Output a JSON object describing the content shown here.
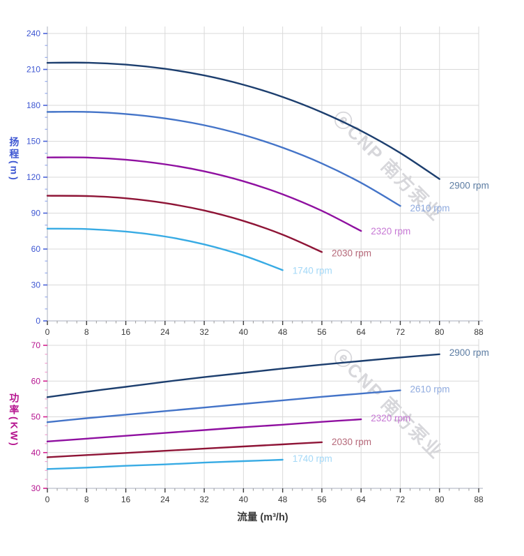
{
  "style": {
    "background": "#ffffff",
    "grid_color": "#d9d9d9",
    "axis_line_color": "#b9bdc9",
    "x_tick_color": "#3a3a3a",
    "x_minor_tick_color": "#9a9a9a",
    "x_label_color": "#3a3a3a",
    "watermark_color": "#d7d7db"
  },
  "watermark": {
    "text": "ⓔCNP 南方泵业"
  },
  "x_axis": {
    "min": 0,
    "max": 88,
    "major_step": 8,
    "minor_step": 2,
    "ticks": [
      0,
      8,
      16,
      24,
      32,
      40,
      48,
      56,
      64,
      72,
      80,
      88
    ]
  },
  "chart_data": [
    {
      "type": "line",
      "name": "head",
      "title": "",
      "xlabel": "",
      "ylabel": "扬程(m)",
      "ylim": [
        0,
        240
      ],
      "y_ticks": [
        0,
        30,
        60,
        90,
        120,
        150,
        180,
        210,
        240
      ],
      "y_minor_step": 10,
      "axis_color": "#3d56d2",
      "tick_color": "#4a63d8",
      "minor_tick_color": "#93a8ec",
      "grid": true,
      "legend": "labels at right end of each curve",
      "series": [
        {
          "name": "2900 rpm",
          "color": "#1c3e6e",
          "label_color": "#5d7da3",
          "x": [
            0,
            8,
            16,
            24,
            32,
            40,
            48,
            56,
            64,
            72,
            80
          ],
          "y": [
            215.5,
            215.6,
            214.0,
            210.5,
            205.0,
            197.2,
            187.0,
            174.2,
            158.7,
            140.2,
            118.5
          ],
          "label_at": [
            82,
            113
          ]
        },
        {
          "name": "2610 rpm",
          "color": "#4474c8",
          "label_color": "#90abdf",
          "x": [
            0,
            8,
            16,
            24,
            32,
            40,
            48,
            56,
            64,
            72
          ],
          "y": [
            174.5,
            174.5,
            172.8,
            169.1,
            163.4,
            155.3,
            144.7,
            131.5,
            115.3,
            96.0
          ],
          "label_at": [
            74,
            94
          ]
        },
        {
          "name": "2320 rpm",
          "color": "#8f10a0",
          "label_color": "#c678d4",
          "x": [
            0,
            8,
            16,
            24,
            32,
            40,
            48,
            56,
            64
          ],
          "y": [
            136.5,
            136.4,
            134.6,
            130.8,
            124.9,
            116.6,
            105.7,
            91.9,
            75.1
          ],
          "label_at": [
            66,
            75
          ]
        },
        {
          "name": "2030 rpm",
          "color": "#8e1436",
          "label_color": "#b56879",
          "x": [
            0,
            8,
            16,
            24,
            32,
            40,
            48,
            56
          ],
          "y": [
            104.5,
            104.3,
            102.4,
            98.4,
            92.2,
            83.5,
            72.0,
            57.5
          ],
          "label_at": [
            58,
            56.5
          ]
        },
        {
          "name": "1740 rpm",
          "color": "#38abe4",
          "label_color": "#a3d8f7",
          "x": [
            0,
            8,
            16,
            24,
            32,
            40,
            48
          ],
          "y": [
            77.0,
            76.7,
            74.6,
            70.5,
            63.9,
            54.6,
            42.4
          ],
          "label_at": [
            50,
            42
          ]
        }
      ]
    },
    {
      "type": "line",
      "name": "power",
      "title": "",
      "xlabel": "流量 (m³/h)",
      "ylabel": "功率(KW)",
      "ylim": [
        30,
        70
      ],
      "y_ticks": [
        30,
        40,
        50,
        60,
        70
      ],
      "y_minor_step": 2.5,
      "axis_color": "#b5138f",
      "tick_color": "#d4218f",
      "minor_tick_color": "#ef9ece",
      "grid": true,
      "legend": "labels at right end of each curve",
      "series": [
        {
          "name": "2900 rpm",
          "color": "#1c3e6e",
          "label_color": "#5d7da3",
          "x": [
            0,
            8,
            16,
            24,
            32,
            40,
            48,
            56,
            64,
            72,
            80
          ],
          "y": [
            55.5,
            57.0,
            58.4,
            59.8,
            61.1,
            62.3,
            63.5,
            64.6,
            65.6,
            66.6,
            67.5
          ],
          "label_at": [
            82,
            68
          ]
        },
        {
          "name": "2610 rpm",
          "color": "#4474c8",
          "label_color": "#90abdf",
          "x": [
            0,
            8,
            16,
            24,
            32,
            40,
            48,
            56,
            64,
            72
          ],
          "y": [
            48.5,
            49.6,
            50.6,
            51.6,
            52.6,
            53.6,
            54.6,
            55.6,
            56.5,
            57.4
          ],
          "label_at": [
            74,
            57.7
          ]
        },
        {
          "name": "2320 rpm",
          "color": "#8f10a0",
          "label_color": "#c678d4",
          "x": [
            0,
            8,
            16,
            24,
            32,
            40,
            48,
            56,
            64
          ],
          "y": [
            43.1,
            43.9,
            44.7,
            45.5,
            46.3,
            47.1,
            47.8,
            48.6,
            49.3
          ],
          "label_at": [
            66,
            49.6
          ]
        },
        {
          "name": "2030 rpm",
          "color": "#8e1436",
          "label_color": "#b56879",
          "x": [
            0,
            8,
            16,
            24,
            32,
            40,
            48,
            56
          ],
          "y": [
            38.7,
            39.3,
            39.9,
            40.5,
            41.1,
            41.7,
            42.3,
            42.9
          ],
          "label_at": [
            58,
            43.0
          ]
        },
        {
          "name": "1740 rpm",
          "color": "#38abe4",
          "label_color": "#a3d8f7",
          "x": [
            0,
            8,
            16,
            24,
            32,
            40,
            48
          ],
          "y": [
            35.4,
            35.8,
            36.3,
            36.7,
            37.2,
            37.6,
            38.0
          ],
          "label_at": [
            50,
            38.3
          ]
        }
      ]
    }
  ]
}
